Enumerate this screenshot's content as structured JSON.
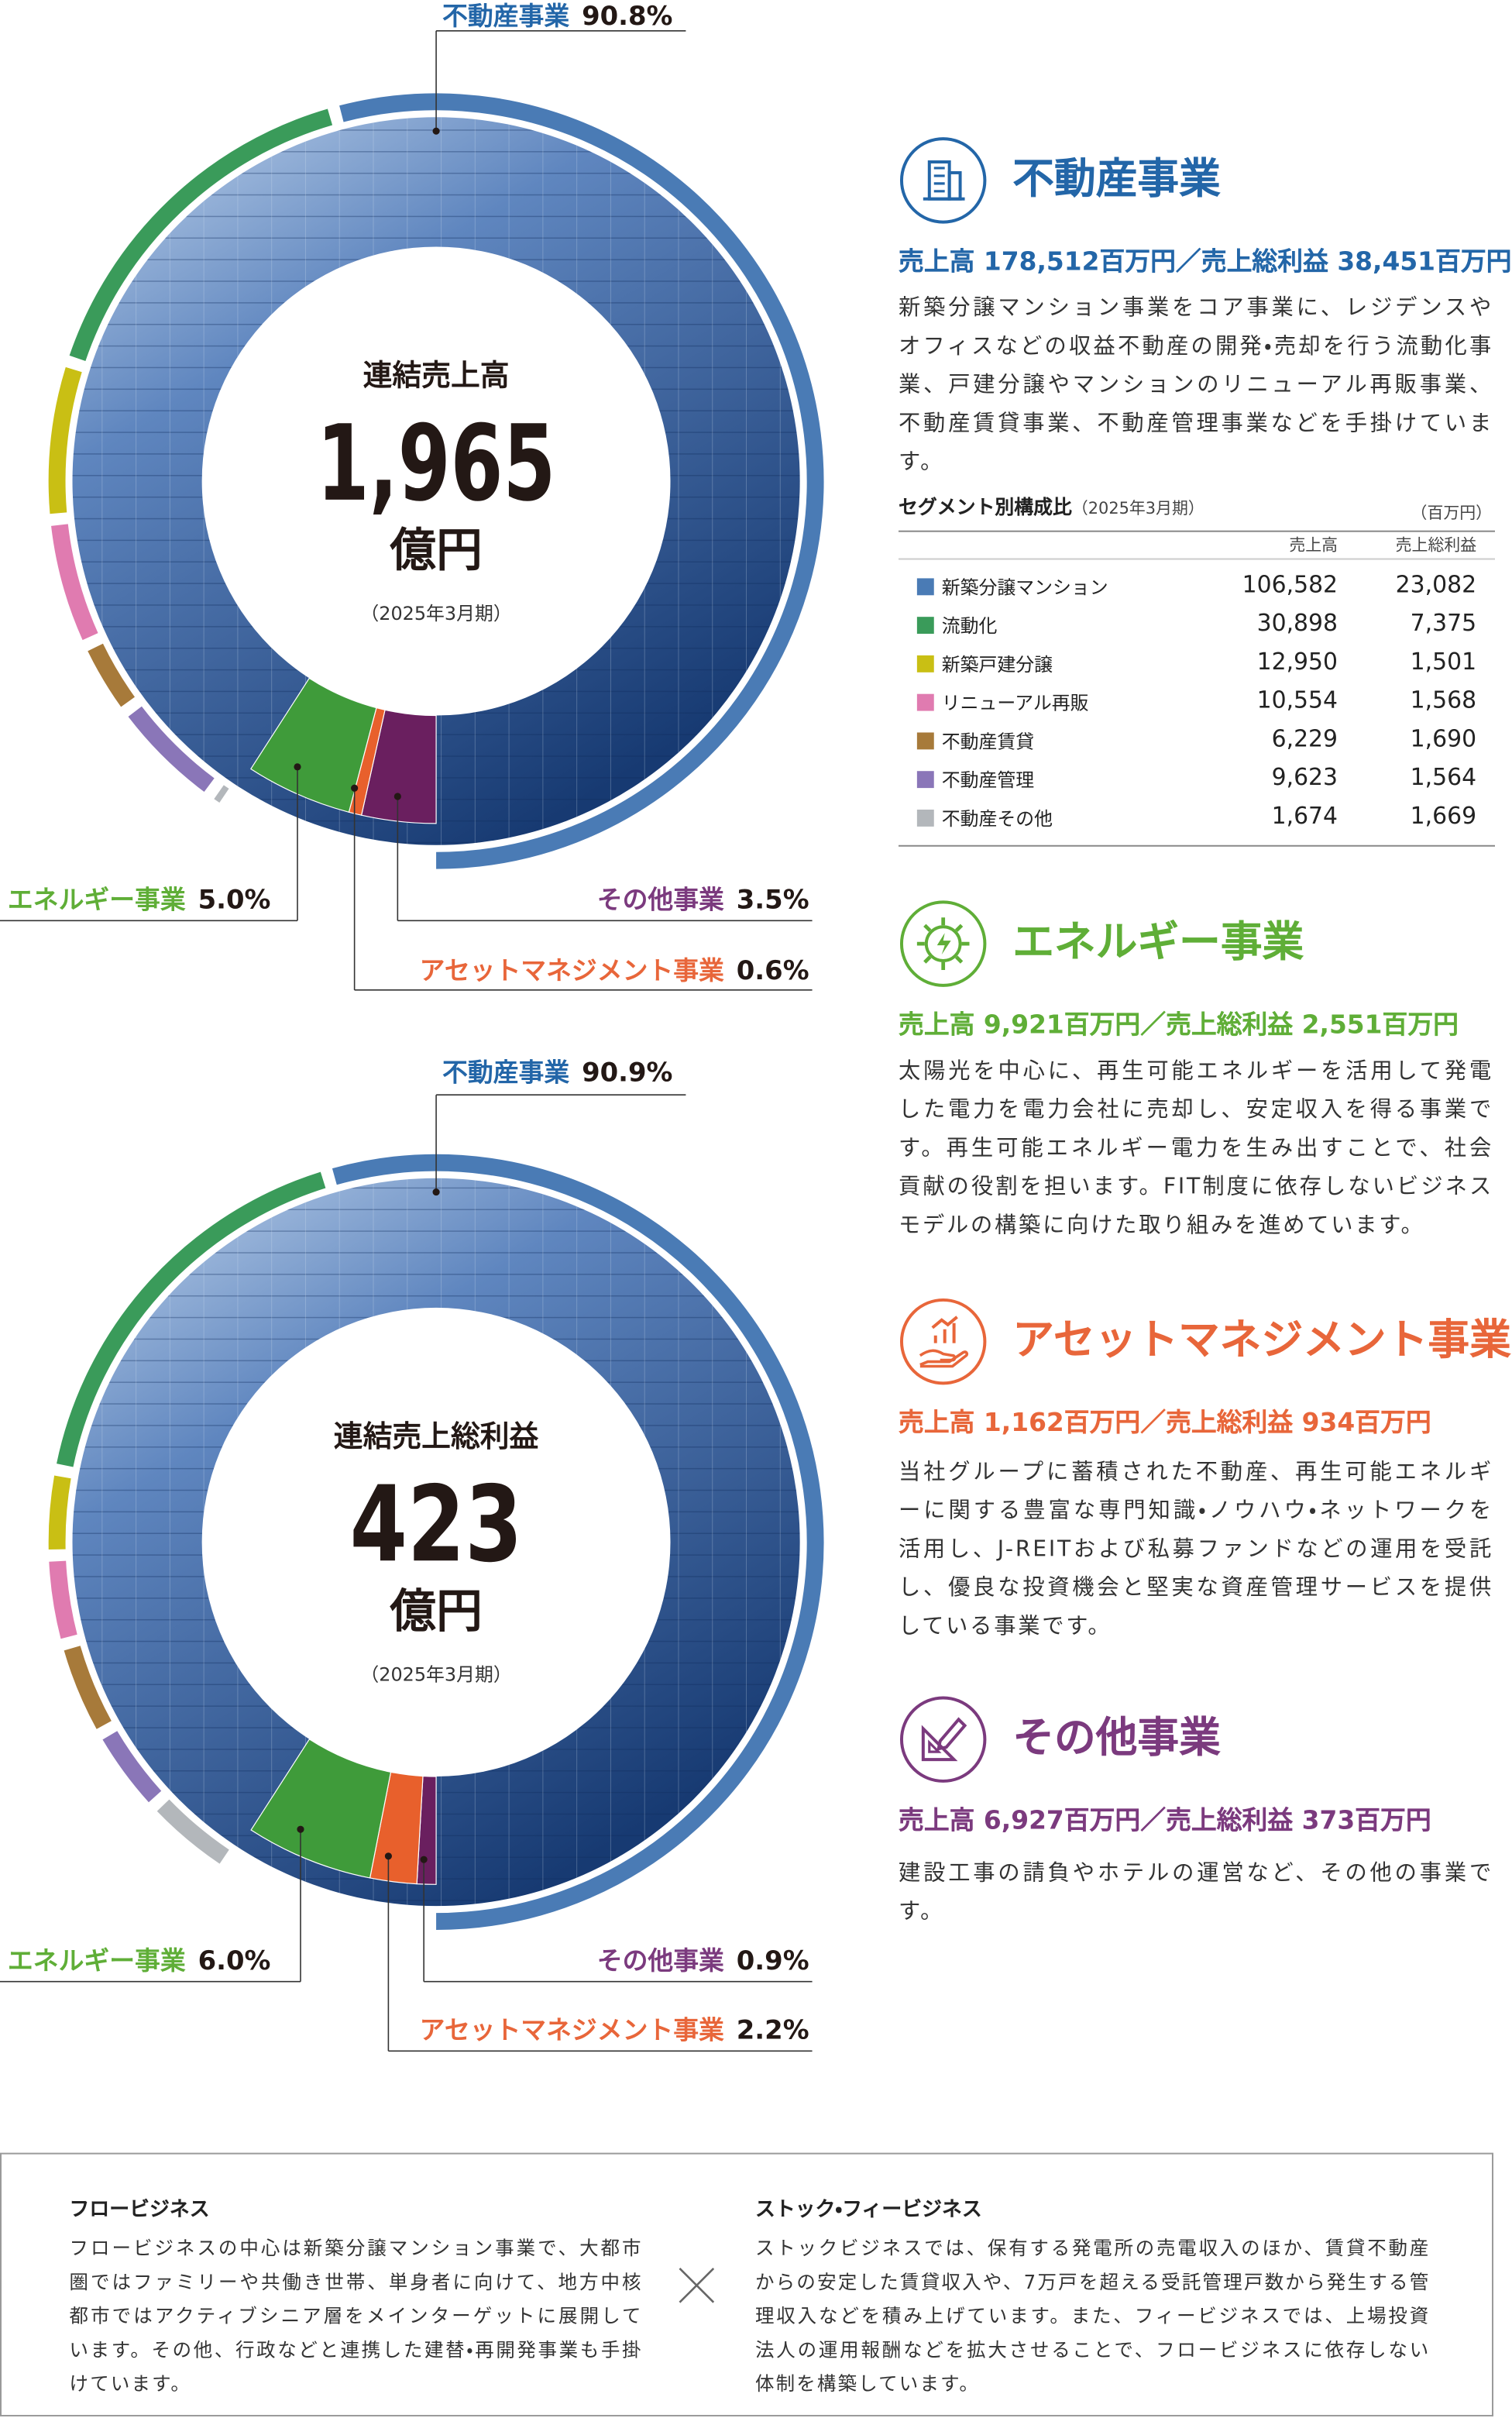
{
  "chart_data": [
    {
      "type": "pie",
      "title": "連結売上高",
      "center_value": "1,965",
      "center_unit": "億円",
      "period": "（2025年3月期）",
      "categories": [
        "不動産事業",
        "エネルギー事業",
        "アセットマネジメント事業",
        "その他事業"
      ],
      "values": [
        90.8,
        5.0,
        0.6,
        3.5
      ],
      "value_labels": [
        "90.8%",
        "5.0%",
        "0.6%",
        "3.5%"
      ],
      "colors": [
        "#4a7bb5",
        "#3f9b3a",
        "#e8602c",
        "#6a1f5f"
      ],
      "breakdown": {
        "values": [
          106582,
          30898,
          12950,
          10554,
          6229,
          9623,
          1674
        ],
        "colors": [
          "#4a7bb5",
          "#3a9b5a",
          "#c9bf14",
          "#e07bb0",
          "#a77a3a",
          "#8a76b8",
          "#b3b7bb"
        ]
      }
    },
    {
      "type": "pie",
      "title": "連結売上総利益",
      "center_value": "423",
      "center_unit": "億円",
      "period": "（2025年3月期）",
      "categories": [
        "不動産事業",
        "エネルギー事業",
        "アセットマネジメント事業",
        "その他事業"
      ],
      "values": [
        90.9,
        6.0,
        2.2,
        0.9
      ],
      "value_labels": [
        "90.9%",
        "6.0%",
        "2.2%",
        "0.9%"
      ],
      "colors": [
        "#4a7bb5",
        "#3f9b3a",
        "#e8602c",
        "#6a1f5f"
      ],
      "breakdown": {
        "values": [
          23082,
          7375,
          1501,
          1568,
          1690,
          1564,
          1669
        ],
        "colors": [
          "#4a7bb5",
          "#3a9b5a",
          "#c9bf14",
          "#e07bb0",
          "#a77a3a",
          "#8a76b8",
          "#b3b7bb"
        ]
      }
    }
  ],
  "segments": [
    {
      "title": "不動産事業",
      "color": "#2366a8",
      "figures": "売上高 178,512百万円／売上総利益 38,451百万円",
      "description": "新築分譲マンション事業をコア事業に、レジデンスやオフィスなどの収益不動産の開発・売却を行う流動化事業、戸建分譲やマンションのリニューアル再販事業、不動産賃貸事業、不動産管理事業などを手掛けています。"
    },
    {
      "title": "エネルギー事業",
      "color": "#5fae37",
      "figures": "売上高 9,921百万円／売上総利益 2,551百万円",
      "description": "太陽光を中心に、再生可能エネルギーを活用して発電した電力を電力会社に売却し、安定収入を得る事業です。再生可能エネルギー電力を生み出すことで、社会貢献の役割を担います。FIT制度に依存しないビジネスモデルの構築に向けた取り組みを進めています。"
    },
    {
      "title": "アセットマネジメント事業",
      "color": "#e8663a",
      "figures": "売上高 1,162百万円／売上総利益 934百万円",
      "description": "当社グループに蓄積された不動産、再生可能エネルギーに関する豊富な専門知識・ノウハウ・ネットワークを活用し、J-REITおよび私募ファンドなどの運用を受託し、優良な投資機会と堅実な資産管理サービスを提供している事業です。"
    },
    {
      "title": "その他事業",
      "color": "#7b3a7e",
      "figures": "売上高 6,927百万円／売上総利益 373百万円",
      "description": "建設工事の請負やホテルの運営など、その他の事業です。"
    }
  ],
  "segment_table": {
    "title": "セグメント別構成比",
    "period": "（2025年3月期）",
    "unit": "（百万円）",
    "columns": [
      "売上高",
      "売上総利益"
    ],
    "rows": [
      [
        "新築分譲マンション",
        "106,582",
        "23,082"
      ],
      [
        "流動化",
        "30,898",
        "7,375"
      ],
      [
        "新築戸建分譲",
        "12,950",
        "1,501"
      ],
      [
        "リニューアル再販",
        "10,554",
        "1,568"
      ],
      [
        "不動産賃貸",
        "6,229",
        "1,690"
      ],
      [
        "不動産管理",
        "9,623",
        "1,564"
      ],
      [
        "不動産その他",
        "1,674",
        "1,669"
      ]
    ]
  },
  "business_model": {
    "flow": {
      "title": "フロービジネス",
      "text": "フロービジネスの中心は新築分譲マンション事業で、大都市圏ではファミリーや共働き世帯、単身者に向けて、地方中核都市ではアクティブシニア層をメインターゲットに展開しています。その他、行政などと連携した建替・再開発事業も手掛けています。"
    },
    "stock": {
      "title": "ストック・フィービジネス",
      "text": "ストックビジネスでは、保有する発電所の売電収入のほか、賃貸不動産からの安定した賃貸収入や、7万戸を超える受託管理戸数から発生する管理収入などを積み上げています。また、フィービジネスでは、上場投資法人の運用報酬などを拡大させることで、フロービジネスに依存しない体制を構築しています。"
    }
  }
}
